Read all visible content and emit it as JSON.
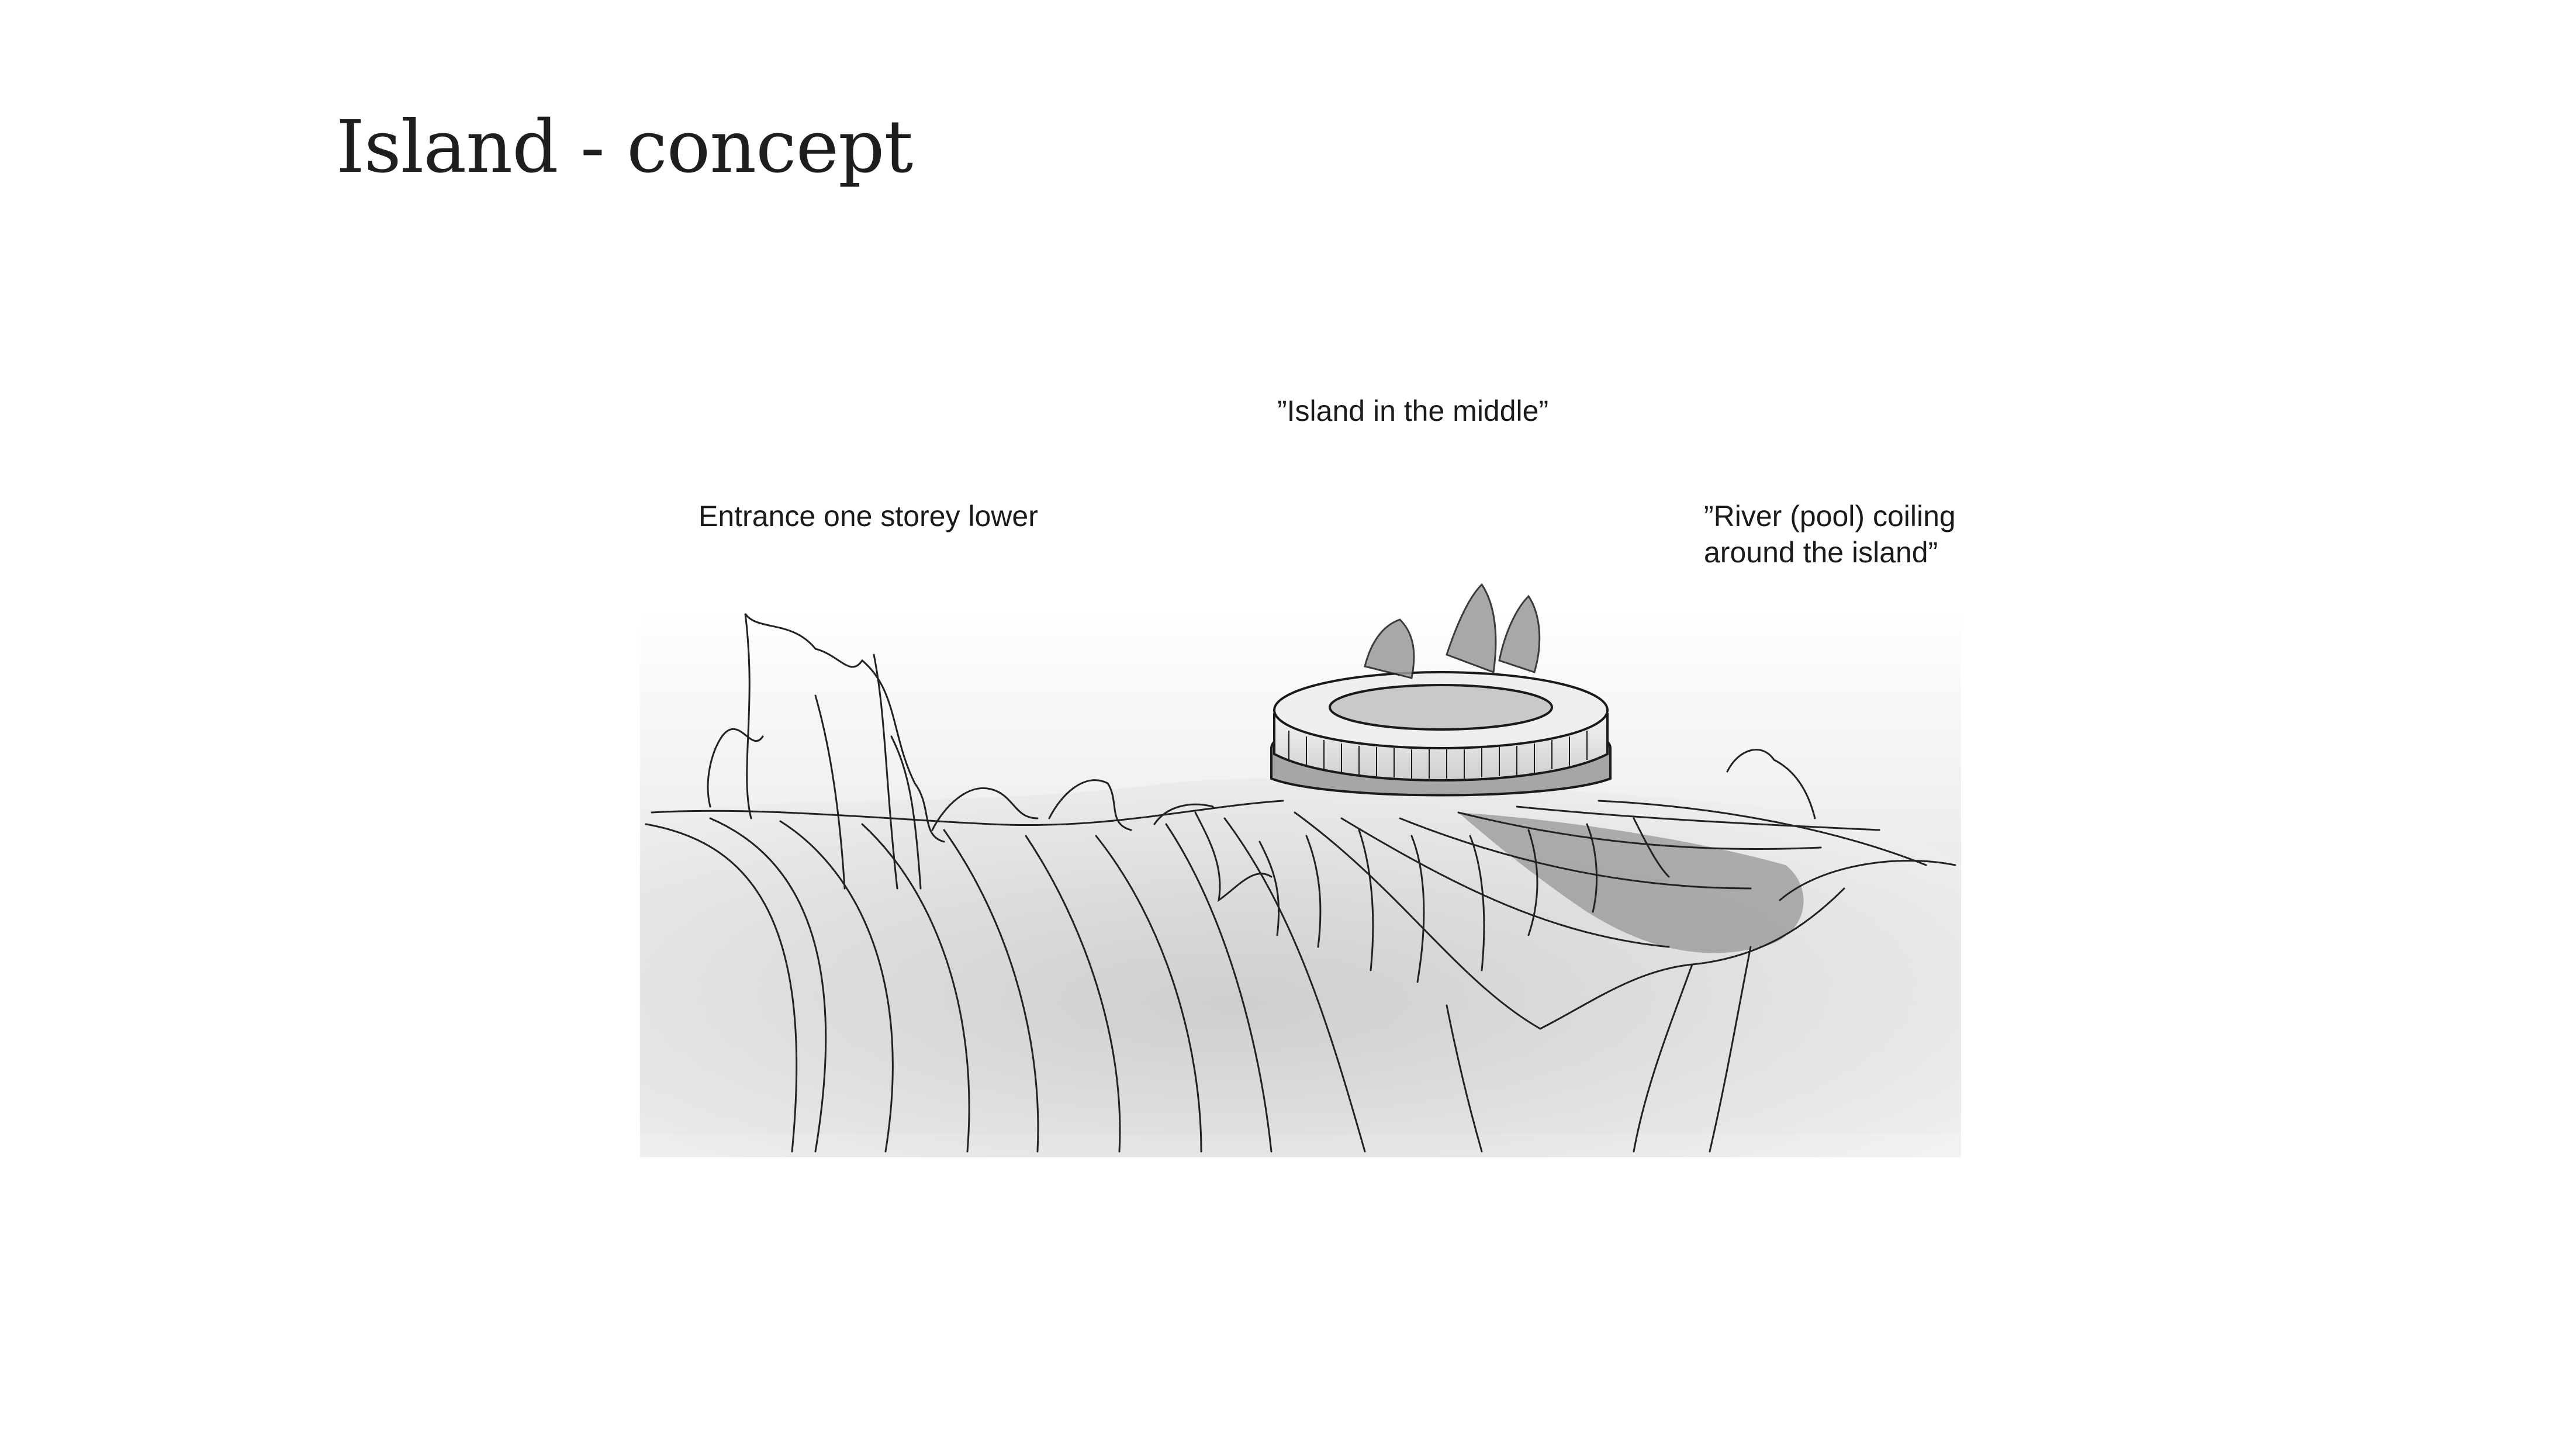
{
  "slide": {
    "title": "Island - concept"
  },
  "annotations": {
    "entrance": "Entrance one storey lower",
    "island": "”Island in the middle”",
    "river_line1": "”River (pool) coiling",
    "river_line2": "around the island”"
  },
  "colors": {
    "background": "#ffffff",
    "ink": "#1a1a1a",
    "shade_light": "#e4e4e4",
    "shade_mid": "#b9b9b9",
    "shade_dark": "#6f6f6f"
  },
  "illustration": {
    "subject": "concept-sketch"
  }
}
